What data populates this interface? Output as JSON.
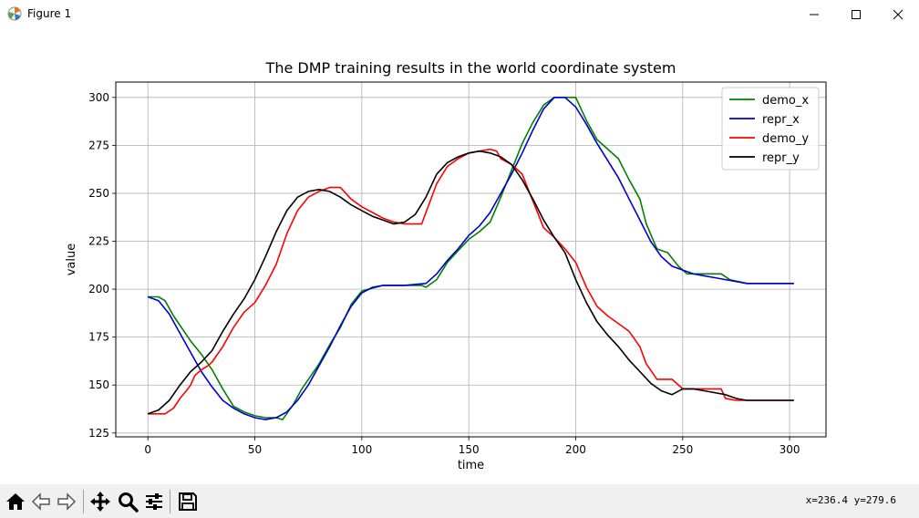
{
  "window": {
    "title": "Figure 1",
    "icons": {
      "app": "matplotlib-logo-icon",
      "minimize": "minimize-icon",
      "maximize": "maximize-icon",
      "close": "close-icon"
    }
  },
  "toolbar": {
    "buttons": [
      "home-icon",
      "back-arrow-icon",
      "forward-arrow-icon",
      "pan-icon",
      "zoom-icon",
      "configure-subplots-icon",
      "save-icon"
    ],
    "coords": "x=236.4 y=279.6"
  },
  "chart_data": {
    "type": "line",
    "title": "The DMP training results in the world coordinate system",
    "xlabel": "time",
    "ylabel": "value",
    "xlim": [
      -15,
      317
    ],
    "ylim": [
      123,
      308
    ],
    "xticks": [
      0,
      50,
      100,
      150,
      200,
      250,
      300
    ],
    "yticks": [
      125,
      150,
      175,
      200,
      225,
      250,
      275,
      300
    ],
    "grid": true,
    "legend_position": "top-right",
    "series": [
      {
        "name": "demo_x",
        "color": "#008000",
        "x": [
          0,
          5,
          8,
          12,
          20,
          25,
          30,
          35,
          40,
          45,
          50,
          55,
          60,
          63,
          68,
          72,
          80,
          85,
          90,
          95,
          100,
          110,
          120,
          128,
          130,
          135,
          140,
          145,
          150,
          155,
          160,
          165,
          170,
          175,
          180,
          185,
          190,
          195,
          200,
          205,
          210,
          215,
          220,
          225,
          230,
          233,
          238,
          243,
          248,
          252,
          258,
          262,
          268,
          272,
          280,
          290,
          302
        ],
        "values": [
          196,
          196,
          194,
          186,
          173,
          166,
          158,
          148,
          139,
          136,
          134,
          133,
          133,
          132,
          140,
          148,
          161,
          171,
          180,
          192,
          199,
          202,
          202,
          202,
          201,
          205,
          214,
          220,
          226,
          230,
          235,
          248,
          262,
          276,
          287,
          296,
          300,
          300,
          300,
          288,
          278,
          273,
          268,
          257,
          247,
          234,
          221,
          219,
          212,
          208,
          208,
          208,
          208,
          205,
          203,
          203,
          203
        ]
      },
      {
        "name": "repr_x",
        "color": "#0000cc",
        "x": [
          0,
          5,
          10,
          15,
          20,
          25,
          30,
          35,
          40,
          45,
          50,
          55,
          60,
          65,
          70,
          75,
          80,
          85,
          90,
          95,
          100,
          105,
          110,
          120,
          130,
          135,
          140,
          145,
          150,
          155,
          160,
          165,
          170,
          175,
          180,
          185,
          190,
          195,
          200,
          205,
          210,
          215,
          220,
          225,
          230,
          235,
          240,
          245,
          250,
          255,
          260,
          265,
          270,
          275,
          280,
          290,
          302
        ],
        "values": [
          196,
          194,
          187,
          177,
          167,
          157,
          149,
          142,
          138,
          135,
          133,
          132,
          133,
          136,
          142,
          150,
          160,
          170,
          181,
          191,
          198,
          201,
          202,
          202,
          203,
          208,
          215,
          221,
          228,
          233,
          240,
          250,
          260,
          271,
          283,
          294,
          300,
          300,
          295,
          286,
          276,
          267,
          258,
          247,
          236,
          225,
          217,
          212,
          210,
          208,
          207,
          206,
          205,
          204,
          203,
          203,
          203
        ]
      },
      {
        "name": "demo_y",
        "color": "#ff0000",
        "x": [
          0,
          2,
          5,
          8,
          12,
          15,
          18,
          20,
          22,
          25,
          28,
          30,
          35,
          40,
          45,
          50,
          55,
          60,
          65,
          70,
          75,
          80,
          85,
          88,
          90,
          95,
          100,
          105,
          110,
          115,
          120,
          125,
          128,
          130,
          135,
          140,
          145,
          150,
          155,
          160,
          163,
          165,
          170,
          175,
          180,
          185,
          190,
          195,
          200,
          205,
          210,
          215,
          220,
          225,
          230,
          233,
          238,
          242,
          245,
          250,
          260,
          265,
          268,
          270,
          275,
          280,
          302
        ],
        "values": [
          135,
          135,
          135,
          135,
          138,
          143,
          147,
          150,
          155,
          158,
          160,
          162,
          170,
          180,
          188,
          193,
          202,
          213,
          229,
          241,
          248,
          251,
          253,
          253,
          253,
          247,
          243,
          240,
          237,
          235,
          234,
          234,
          234,
          240,
          255,
          264,
          268,
          271,
          272,
          273,
          272,
          268,
          265,
          260,
          246,
          232,
          227,
          221,
          214,
          201,
          191,
          186,
          182,
          178,
          170,
          161,
          153,
          153,
          153,
          148,
          148,
          148,
          148,
          143,
          142,
          142,
          142
        ]
      },
      {
        "name": "repr_y",
        "color": "#000000",
        "x": [
          0,
          5,
          10,
          15,
          20,
          25,
          30,
          35,
          40,
          45,
          50,
          55,
          60,
          65,
          70,
          75,
          80,
          85,
          90,
          95,
          100,
          105,
          110,
          115,
          120,
          125,
          130,
          135,
          140,
          145,
          150,
          155,
          160,
          165,
          170,
          175,
          180,
          185,
          190,
          195,
          200,
          205,
          210,
          215,
          220,
          225,
          230,
          235,
          240,
          245,
          250,
          255,
          260,
          265,
          270,
          275,
          280,
          290,
          302
        ],
        "values": [
          135,
          137,
          142,
          150,
          157,
          162,
          168,
          178,
          187,
          195,
          205,
          217,
          230,
          241,
          248,
          251,
          252,
          251,
          248,
          244,
          241,
          238,
          236,
          234,
          235,
          239,
          248,
          260,
          266,
          269,
          271,
          272,
          271,
          269,
          265,
          257,
          247,
          236,
          227,
          219,
          205,
          193,
          183,
          176,
          170,
          163,
          157,
          151,
          147,
          145,
          148,
          148,
          147,
          146,
          145,
          143,
          142,
          142,
          142
        ]
      }
    ]
  }
}
